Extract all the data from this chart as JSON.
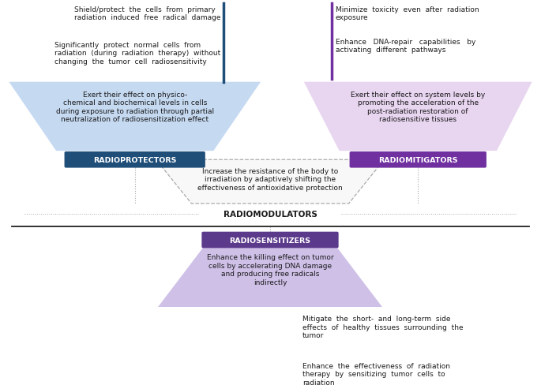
{
  "fig_width": 6.85,
  "fig_height": 4.89,
  "dpi": 100,
  "bg_color": "#ffffff",
  "radioprotectors_label": "RADIOPROTECTORS",
  "radioprotectors_badge_color": "#1f4e79",
  "radioprotectors_shape_color": "#c5d9f1",
  "radioprotectors_text": "Exert their effect on physico-\nchemical and biochemical levels in cells\nduring exposure to radiation through partial\nneutralization of radiosensitization effect",
  "radiomitigators_label": "RADIOMITIGATORS",
  "radiomitigators_badge_color": "#7030a0",
  "radiomitigators_shape_color": "#e8d5f0",
  "radiomitigators_text": "Exert their effect on system levels by\npromoting the acceleration of the\npost-radiation restoration of\nradiosensitive tissues",
  "radiosensitizers_label": "RADIOSENSITIZERS",
  "radiosensitizers_badge_color": "#5b3a8c",
  "radiosensitizers_shape_color": "#cfc0e8",
  "radiosensitizers_text": "Enhance the killing effect on tumor\ncells by accelerating DNA damage\nand producing free radicals\nindirectly",
  "radiomodulators_label": "RADIOMODULATORS",
  "radiomodulators_text": "Increase the resistance of the body to\nirradiation by adaptively shifting the\neffectiveness of antioxidative protection",
  "left_bullet1": "Shield/protect  the  cells  from  primary\nradiation  induced  free  radical  damage",
  "left_bullet2": "Significantly  protect  normal  cells  from\nradiation  (during  radiation  therapy)  without\nchanging  the  tumor  cell  radiosensitivity",
  "left_bar_color": "#1f4e79",
  "right_bullet1": "Minimize  toxicity  even  after  radiation\nexposure",
  "right_bullet2": "Enhance   DNA-repair   capabilities   by\nactivating  different  pathways",
  "right_bar_color": "#7030a0",
  "bottom_bullet1": "Mitigate  the  short-  and  long-term  side\neffects  of  healthy  tissues  surrounding  the\ntumor",
  "bottom_bullet2": "Enhance  the  effectiveness  of  radiation\ntherapy  by  sensitizing  tumor  cells  to\nradiation",
  "bottom_bar_color": "#5b3a8c",
  "text_color": "#1a1a1a",
  "font_size_body": 6.5,
  "font_size_badge": 6.8,
  "font_size_radiomod_label": 7.5
}
